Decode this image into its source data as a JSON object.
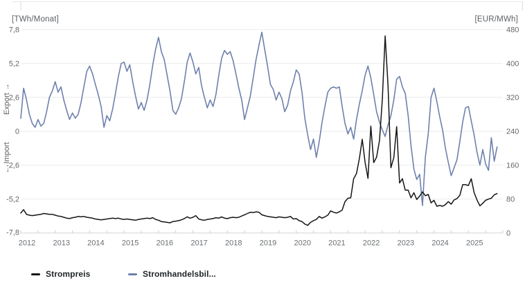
{
  "chart_data": {
    "type": "line",
    "left_axis": {
      "unit": "[TWh/Monat]",
      "label_upper": "Export →",
      "label_lower": "← Import",
      "min": -7.8,
      "max": 7.8,
      "tick_labels": [
        "7,8",
        "5,2",
        "2,6",
        "0",
        "-2,6",
        "-5,2",
        "-7,8"
      ],
      "tick_values": [
        7.8,
        5.2,
        2.6,
        0,
        -2.6,
        -5.2,
        -7.8
      ]
    },
    "right_axis": {
      "unit": "[EUR/MWh]",
      "min": 0,
      "max": 480,
      "tick_labels": [
        "480",
        "400",
        "320",
        "240",
        "160",
        "80",
        "0"
      ],
      "tick_values": [
        480,
        400,
        320,
        240,
        160,
        80,
        0
      ]
    },
    "x_axis": {
      "years": [
        "2012",
        "2013",
        "2014",
        "2015",
        "2016",
        "2017",
        "2018",
        "2019",
        "2020",
        "2021",
        "2022",
        "2023",
        "2024",
        "2025"
      ],
      "months_per_year": 12,
      "grid": "horizontal-only"
    },
    "series": [
      {
        "name": "Stromhandelsbil...",
        "axis": "left",
        "color": "#6e80ac",
        "values": [
          1.0,
          3.3,
          2.4,
          1.3,
          0.6,
          0.3,
          0.9,
          0.4,
          0.6,
          1.5,
          2.6,
          3.1,
          3.8,
          3.0,
          3.4,
          2.4,
          1.6,
          0.9,
          1.4,
          1.0,
          1.3,
          2.2,
          3.4,
          4.6,
          5.0,
          4.4,
          3.6,
          2.8,
          1.9,
          0.3,
          1.2,
          0.8,
          1.7,
          2.9,
          4.2,
          5.2,
          5.3,
          4.6,
          5.1,
          3.8,
          2.7,
          1.7,
          2.2,
          1.6,
          2.4,
          3.6,
          5.1,
          6.3,
          7.2,
          6.1,
          5.5,
          4.3,
          3.1,
          1.6,
          1.3,
          1.8,
          2.5,
          3.8,
          5.3,
          6.0,
          5.3,
          4.4,
          4.9,
          3.5,
          2.6,
          1.8,
          2.4,
          1.9,
          2.8,
          4.3,
          5.6,
          6.2,
          5.9,
          6.1,
          5.4,
          4.4,
          3.3,
          2.4,
          0.9,
          1.8,
          2.7,
          4.1,
          5.5,
          6.6,
          7.6,
          6.3,
          5.0,
          3.6,
          3.2,
          2.4,
          3.0,
          2.5,
          1.5,
          2.0,
          3.1,
          3.8,
          4.7,
          4.4,
          3.0,
          1.0,
          -0.3,
          -1.4,
          -0.6,
          -2.0,
          -0.8,
          0.7,
          1.9,
          3.0,
          3.3,
          3.4,
          3.3,
          3.4,
          1.9,
          0.6,
          -0.2,
          0.3,
          -0.6,
          0.9,
          2.1,
          3.1,
          4.3,
          5.0,
          4.1,
          2.8,
          1.5,
          0.7,
          0.1,
          -0.4,
          0.5,
          1.2,
          2.4,
          4.0,
          4.2,
          3.4,
          2.9,
          1.2,
          -1.1,
          -2.9,
          -3.7,
          -3.3,
          -5.7,
          -2.0,
          -0.2,
          2.6,
          3.3,
          2.3,
          1.1,
          0.1,
          -1.3,
          -2.4,
          -3.4,
          -2.8,
          -2.2,
          -0.8,
          0.7,
          1.8,
          1.9,
          0.8,
          -0.3,
          -1.6,
          -2.6,
          -1.4,
          -2.5,
          -3.0,
          -0.5,
          -2.3,
          -1.2
        ]
      },
      {
        "name": "Strompreis",
        "axis": "right",
        "color": "#141414",
        "values": [
          47,
          55,
          44,
          42,
          41,
          42,
          43,
          44,
          46,
          45,
          44,
          44,
          42,
          40,
          39,
          37,
          35,
          34,
          36,
          37,
          39,
          38,
          39,
          37,
          36,
          35,
          33,
          32,
          31,
          32,
          33,
          34,
          35,
          34,
          35,
          33,
          32,
          33,
          32,
          31,
          30,
          32,
          33,
          34,
          35,
          34,
          36,
          32,
          30,
          27,
          26,
          25,
          24,
          27,
          28,
          29,
          31,
          34,
          38,
          35,
          37,
          41,
          33,
          31,
          30,
          32,
          33,
          34,
          36,
          35,
          38,
          35,
          34,
          36,
          37,
          36,
          37,
          40,
          43,
          46,
          49,
          48,
          50,
          49,
          43,
          41,
          39,
          38,
          37,
          36,
          38,
          37,
          36,
          37,
          39,
          33,
          34,
          29,
          27,
          21,
          18,
          25,
          29,
          32,
          39,
          35,
          38,
          42,
          52,
          49,
          47,
          50,
          54,
          74,
          82,
          83,
          128,
          140,
          176,
          221,
          167,
          129,
          252,
          166,
          179,
          218,
          315,
          465,
          346,
          154,
          178,
          251,
          118,
          128,
          101,
          101,
          83,
          95,
          79,
          87,
          97,
          88,
          91,
          71,
          77,
          63,
          65,
          63,
          67,
          74,
          68,
          78,
          81,
          89,
          114,
          114,
          112,
          128,
          95,
          78,
          64,
          70,
          77,
          80,
          82,
          90,
          93
        ]
      }
    ]
  },
  "legend": {
    "items": [
      {
        "label": "Strompreis",
        "color": "#141414"
      },
      {
        "label": "Stromhandelsbil...",
        "color": "#6e80ac"
      }
    ]
  }
}
